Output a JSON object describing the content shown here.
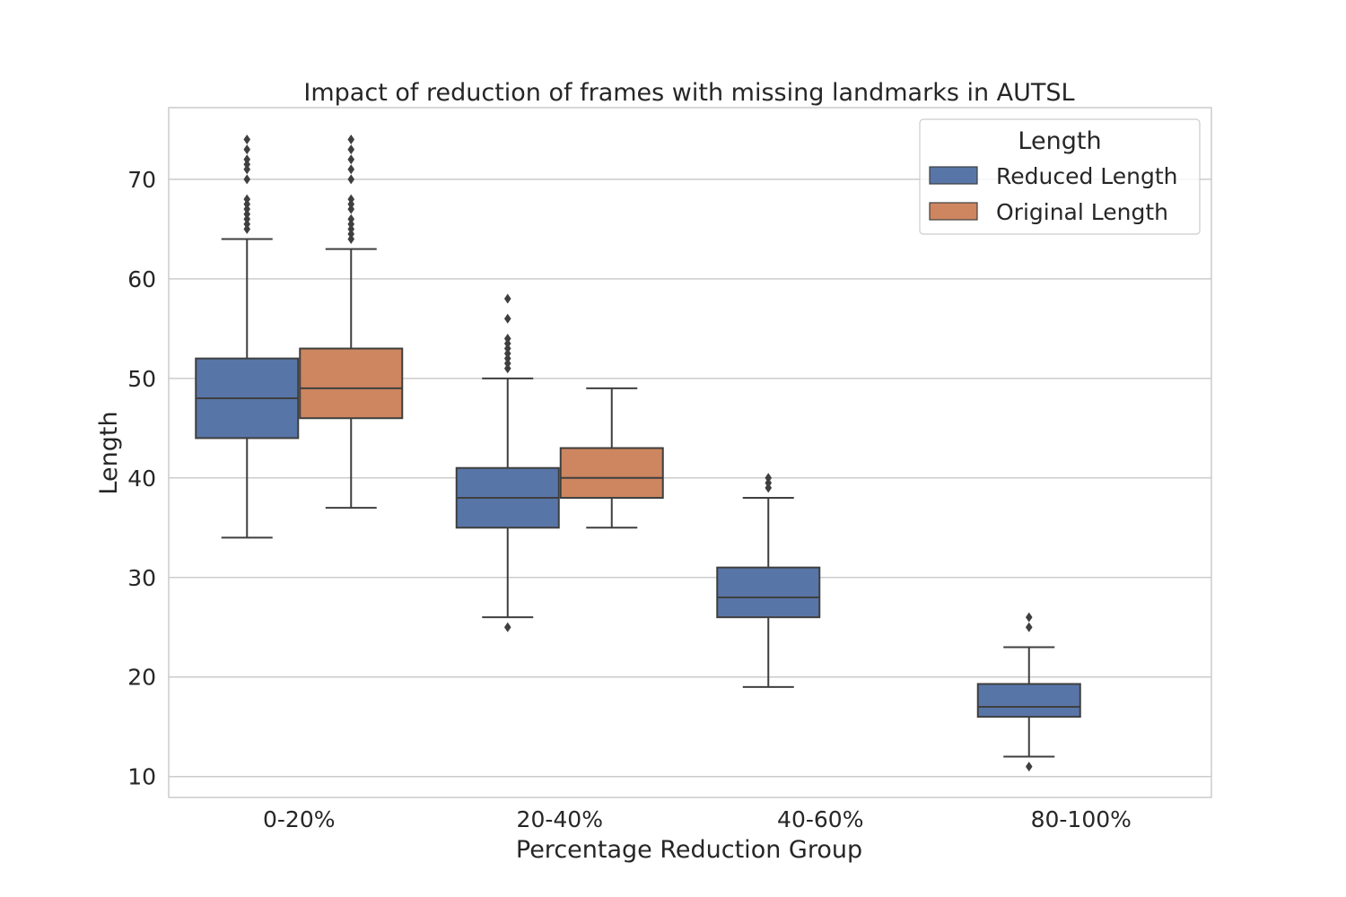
{
  "chart_data": {
    "type": "box",
    "title": "Impact of reduction of frames with missing landmarks in AUTSL",
    "xlabel": "Percentage Reduction Group",
    "ylabel": "Length",
    "categories": [
      "0-20%",
      "20-40%",
      "40-60%",
      "80-100%"
    ],
    "ylim": [
      7.9,
      77.2
    ],
    "yticks": [
      10,
      20,
      30,
      40,
      50,
      60,
      70
    ],
    "grid": true,
    "legend": {
      "title": "Length",
      "position": "top-right"
    },
    "series": [
      {
        "name": "Reduced Length",
        "color": "#5875a7",
        "boxes": [
          {
            "category": "0-20%",
            "whisker_low": 34,
            "q1": 44,
            "median": 48,
            "q3": 52,
            "whisker_high": 64,
            "outliers": [
              65,
              65.5,
              66,
              66.5,
              67,
              67.5,
              68,
              70,
              71,
              71.5,
              72,
              73,
              74
            ]
          },
          {
            "category": "20-40%",
            "whisker_low": 26,
            "q1": 35,
            "median": 38,
            "q3": 41,
            "whisker_high": 50,
            "outliers": [
              25,
              51,
              51.5,
              52,
              52.5,
              53,
              53.5,
              54,
              56,
              58
            ]
          },
          {
            "category": "40-60%",
            "whisker_low": 19,
            "q1": 26,
            "median": 28,
            "q3": 31,
            "whisker_high": 38,
            "outliers": [
              39,
              39.5,
              40
            ]
          },
          {
            "category": "80-100%",
            "whisker_low": 12,
            "q1": 16,
            "median": 17,
            "q3": 19.3,
            "whisker_high": 23,
            "outliers": [
              11,
              25,
              26
            ]
          }
        ]
      },
      {
        "name": "Original Length",
        "color": "#cd8660",
        "boxes": [
          {
            "category": "0-20%",
            "whisker_low": 37,
            "q1": 46,
            "median": 49,
            "q3": 53,
            "whisker_high": 63,
            "outliers": [
              64,
              64.5,
              65,
              65.5,
              66,
              67,
              67.5,
              68,
              70,
              71,
              72,
              73,
              74
            ]
          },
          {
            "category": "20-40%",
            "whisker_low": 35,
            "q1": 38,
            "median": 40,
            "q3": 43,
            "whisker_high": 49,
            "outliers": []
          }
        ]
      }
    ]
  }
}
